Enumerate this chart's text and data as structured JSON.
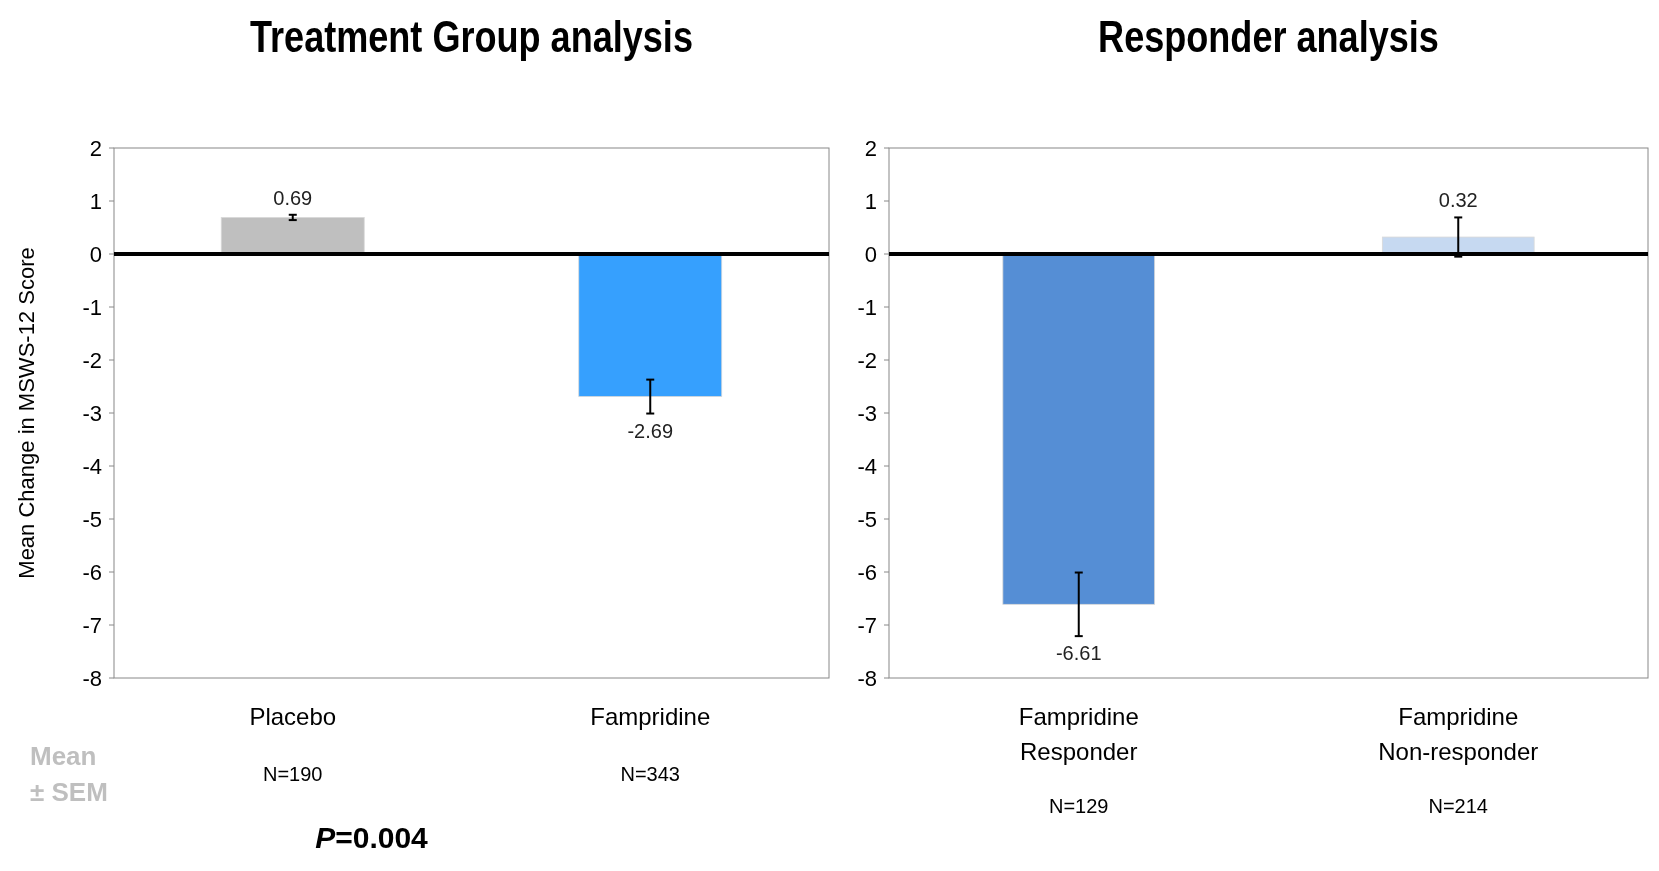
{
  "chart_data": [
    {
      "type": "bar",
      "title": "Treatment Group analysis",
      "ylabel": "Mean Change in MSWS-12 Score",
      "categories": [
        "Placebo",
        "Fampridine"
      ],
      "values": [
        0.69,
        -2.69
      ],
      "colors": [
        "#bfbfbf",
        "#36a0fe"
      ],
      "errors": [
        0.05,
        0.32
      ],
      "data_labels": true,
      "ylim": [
        -8,
        2
      ],
      "yticks": [
        -8,
        -7,
        -6,
        -5,
        -4,
        -3,
        -2,
        -1,
        0,
        1,
        2
      ],
      "grid": false,
      "ref_lines": [
        {
          "axis": "y",
          "value": 0,
          "color": "#000000"
        }
      ],
      "annotations": [
        "N=190",
        "N=343",
        "Mean ± SEM",
        "P=0.004"
      ]
    },
    {
      "type": "bar",
      "title": "Responder analysis",
      "categories": [
        "Fampridine Responder",
        "Fampridine Non-responder"
      ],
      "values": [
        -6.61,
        0.32
      ],
      "colors": [
        "#558ed5",
        "#c6d9f1"
      ],
      "errors": [
        0.6,
        0.37
      ],
      "data_labels": true,
      "ylim": [
        -8,
        2
      ],
      "yticks": [
        -8,
        -7,
        -6,
        -5,
        -4,
        -3,
        -2,
        -1,
        0,
        1,
        2
      ],
      "grid": false,
      "ref_lines": [
        {
          "axis": "y",
          "value": 0,
          "color": "#000000"
        }
      ],
      "annotations": [
        "N=129",
        "N=214"
      ]
    }
  ]
}
